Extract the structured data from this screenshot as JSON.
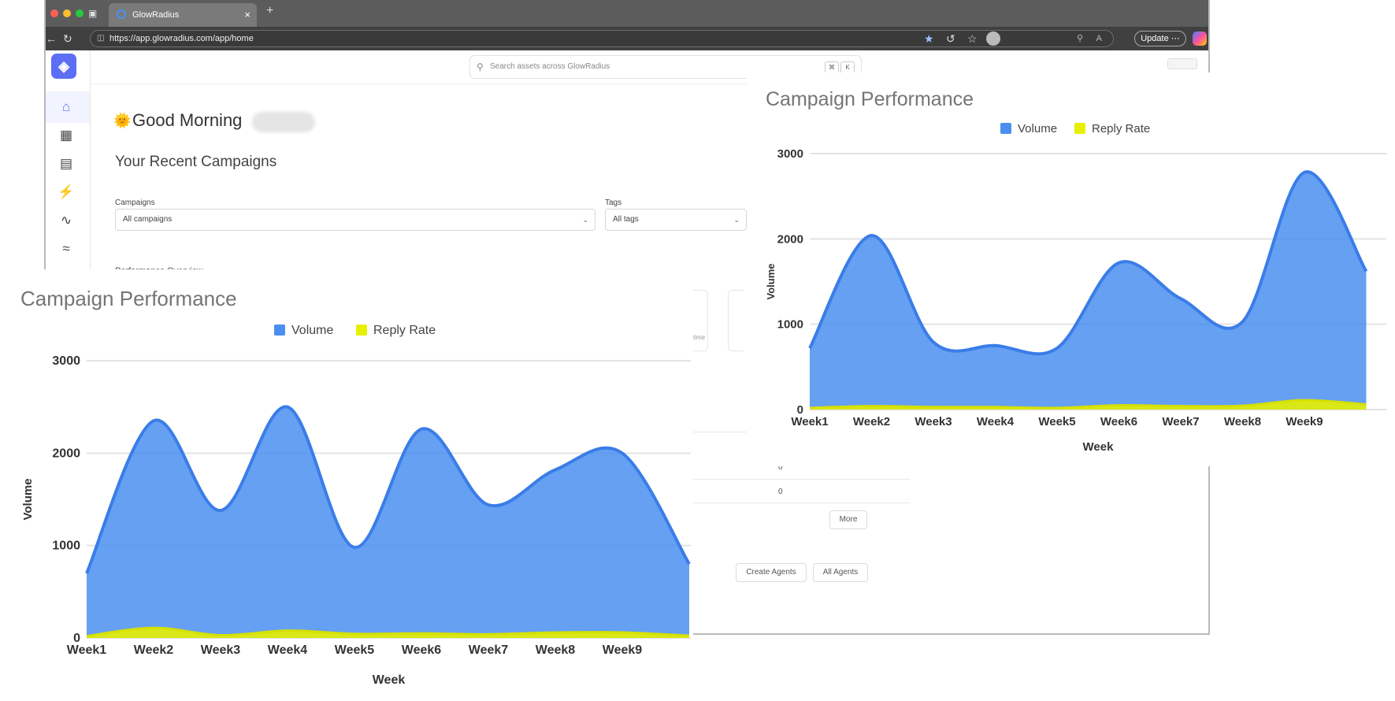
{
  "browser": {
    "tab_title": "GlowRadius",
    "url": "https://app.glowradius.com/app/home",
    "update_label": "Update",
    "more_label": "⋯"
  },
  "colors": {
    "accent": "#5b6ef5",
    "volume": "#4a8ff0",
    "reply_rate": "#e6f000"
  },
  "app": {
    "search_placeholder": "Search assets across GlowRadius",
    "search_shortcut_cmd": "⌘",
    "search_shortcut_key": "K",
    "sidebar_icons": [
      "home-icon",
      "table-icon",
      "document-icon",
      "bolt-icon",
      "trend-icon",
      "plug-icon"
    ],
    "greeting_emoji": "🌞",
    "greeting": "Good Morning",
    "section_title": "Your Recent Campaigns",
    "filters": {
      "campaigns_label": "Campaigns",
      "campaigns_value": "All campaigns",
      "tags_label": "Tags",
      "tags_value": "All tags"
    },
    "performance_label": "Performance Overview",
    "time_fragment": "time",
    "table_values": [
      "0",
      "0"
    ],
    "more_button": "More",
    "create_agents_button": "Create Agents",
    "all_agents_button": "All Agents"
  },
  "chart_data": [
    {
      "type": "area",
      "title": "Campaign Performance",
      "xlabel": "Week",
      "ylabel": "Volume",
      "ylim": [
        0,
        3000
      ],
      "yticks": [
        0,
        1000,
        2000,
        3000
      ],
      "categories": [
        "Week1",
        "Week2",
        "Week3",
        "Week4",
        "Week5",
        "Week6",
        "Week7",
        "Week8",
        "Week9"
      ],
      "legend": "top-center",
      "grid": true,
      "series": [
        {
          "name": "Volume",
          "x": [
            0,
            1,
            2,
            3,
            4,
            5,
            6,
            7,
            8,
            9
          ],
          "values": [
            700,
            2350,
            1380,
            2500,
            980,
            2260,
            1440,
            1820,
            2000,
            800
          ]
        },
        {
          "name": "Reply Rate",
          "x": [
            0,
            1,
            2,
            3,
            4,
            5,
            6,
            7,
            8,
            9
          ],
          "values": [
            20,
            110,
            30,
            80,
            45,
            50,
            40,
            60,
            60,
            25
          ]
        }
      ]
    },
    {
      "type": "area",
      "title": "Campaign Performance",
      "xlabel": "Week",
      "ylabel": "Volume",
      "ylim": [
        0,
        3000
      ],
      "yticks": [
        0,
        1000,
        2000,
        3000
      ],
      "categories": [
        "Week1",
        "Week2",
        "Week3",
        "Week4",
        "Week5",
        "Week6",
        "Week7",
        "Week8",
        "Week9"
      ],
      "legend": "top-center",
      "grid": true,
      "series": [
        {
          "name": "Volume",
          "x": [
            0,
            1,
            2,
            3,
            4,
            5,
            6,
            7,
            8,
            9
          ],
          "values": [
            720,
            2040,
            790,
            750,
            720,
            1720,
            1300,
            1030,
            2780,
            1620
          ]
        },
        {
          "name": "Reply Rate",
          "x": [
            0,
            1,
            2,
            3,
            4,
            5,
            6,
            7,
            8,
            9
          ],
          "values": [
            20,
            40,
            30,
            30,
            20,
            50,
            40,
            45,
            110,
            60
          ]
        }
      ]
    }
  ]
}
